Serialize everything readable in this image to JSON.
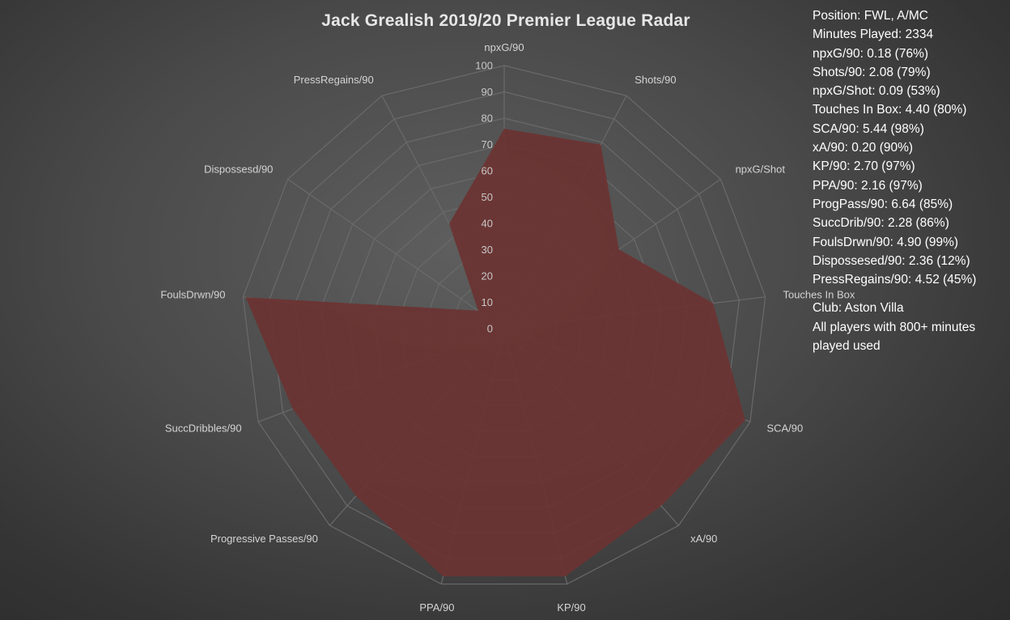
{
  "chart_data": {
    "type": "radar",
    "title": "Jack Grealish 2019/20 Premier League Radar",
    "axes": [
      "npxG/90",
      "Shots/90",
      "npxG/Shot",
      "Touches In Box",
      "SCA/90",
      "xA/90",
      "KP/90",
      "PPA/90",
      "Progressive Passes/90",
      "SuccDribbles/90",
      "FoulsDrwn/90",
      "Dispossesd/90",
      "PressRegains/90"
    ],
    "values": [
      76,
      79,
      53,
      80,
      98,
      90,
      97,
      97,
      85,
      86,
      99,
      12,
      45
    ],
    "rlim": [
      0,
      100
    ],
    "ticks": [
      "0",
      "10",
      "20",
      "30",
      "40",
      "50",
      "60",
      "70",
      "80",
      "90",
      "100"
    ],
    "fill_color": "#6b3332",
    "grid_color": "#6a6a6a"
  },
  "info": {
    "lines": [
      "Position: FWL, A/MC",
      "Minutes Played: 2334",
      "npxG/90: 0.18 (76%)",
      "Shots/90: 2.08 (79%)",
      "npxG/Shot: 0.09 (53%)",
      "Touches In Box: 4.40 (80%)",
      "SCA/90: 5.44 (98%)",
      "xA/90: 0.20 (90%)",
      "KP/90: 2.70 (97%)",
      "PPA/90: 2.16 (97%)",
      "ProgPass/90: 6.64 (85%)",
      "SuccDrib/90: 2.28 (86%)",
      "FoulsDrwn/90: 4.90 (99%)",
      "Dispossesed/90: 2.36 (12%)",
      "PressRegains/90: 4.52 (45%)"
    ],
    "club": "Club: Aston Villa",
    "note": "All players with 800+ minutes played used"
  }
}
